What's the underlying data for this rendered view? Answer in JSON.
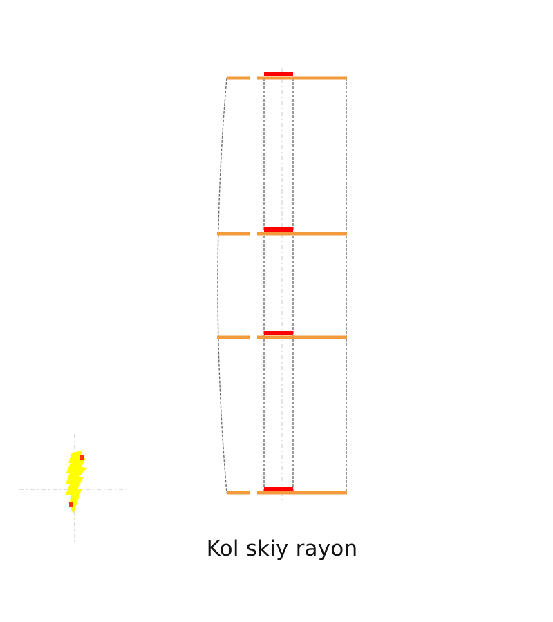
{
  "map": {
    "title": "Kol skiy rayon"
  },
  "colors": {
    "background": "#ffffff",
    "boundary": "#6e6e6e",
    "guide": "#c8c8c8",
    "road": "#f39a3c",
    "highlight": "#ff0000",
    "symbol_fill": "#ffff00",
    "symbol_accent": "#ff3300"
  }
}
